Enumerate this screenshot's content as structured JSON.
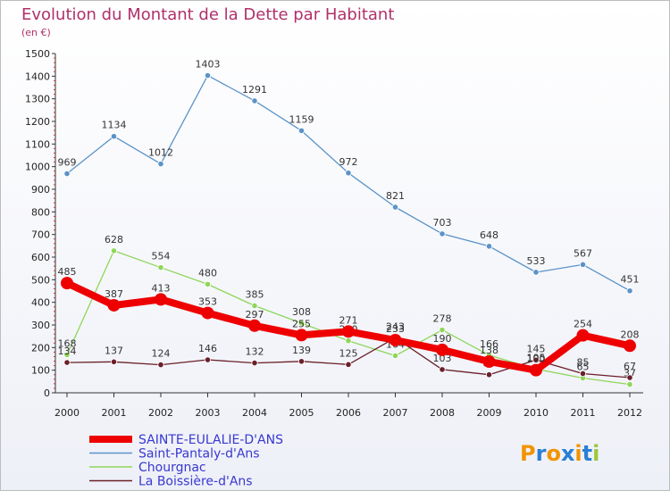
{
  "chart_data": {
    "type": "line",
    "title": "Evolution du Montant de la Dette par Habitant",
    "subtitle": "(en €)",
    "x": [
      "2000",
      "2001",
      "2002",
      "2003",
      "2004",
      "2005",
      "2006",
      "2007",
      "2008",
      "2009",
      "2010",
      "2011",
      "2012"
    ],
    "yticks": [
      "0",
      "100",
      "200",
      "300",
      "400",
      "500",
      "600",
      "700",
      "800",
      "900",
      "1000",
      "1100",
      "1200",
      "1300",
      "1400",
      "1500"
    ],
    "ylim": [
      0,
      1500
    ],
    "grid": false,
    "legend_position": "bottom-left",
    "series": [
      {
        "name": "Saint-Pantaly-d'Ans",
        "color": "#5b93c8",
        "values": [
          969,
          1134,
          1012,
          1403,
          1291,
          1159,
          972,
          821,
          703,
          648,
          533,
          567,
          451
        ],
        "labels": [
          "969",
          "1134",
          "1012",
          "1403",
          "1291",
          "1159",
          "972",
          "821",
          "703",
          "648",
          "533",
          "567",
          "451"
        ]
      },
      {
        "name": "Chourgnac",
        "color": "#8fd65a",
        "values": [
          168,
          628,
          554,
          480,
          385,
          308,
          230,
          164,
          278,
          166,
          105,
          65,
          37
        ],
        "labels": [
          "168",
          "628",
          "554",
          "480",
          "385",
          "308",
          "230",
          "164",
          "278",
          "166",
          "105",
          "65",
          "37"
        ]
      },
      {
        "name": "La Boissière-d'Ans",
        "color": "#6b1f2a",
        "values": [
          134,
          137,
          124,
          146,
          132,
          139,
          125,
          243,
          103,
          80,
          145,
          85,
          67
        ],
        "labels": [
          "134",
          "137",
          "124",
          "146",
          "132",
          "139",
          "125",
          "243",
          "103",
          "80",
          "145",
          "85",
          "67"
        ]
      },
      {
        "name": "SAINTE-EULALIE-D'ANS",
        "color": "#ee0000",
        "values": [
          485,
          387,
          413,
          353,
          297,
          255,
          271,
          233,
          190,
          138,
          100,
          254,
          208
        ],
        "labels": [
          "485",
          "387",
          "413",
          "353",
          "297",
          "255",
          "271",
          "233",
          "190",
          "138",
          "100",
          "254",
          "208"
        ]
      }
    ]
  },
  "legend": [
    {
      "label": "SAINTE-EULALIE-D'ANS",
      "color": "#ee0000"
    },
    {
      "label": "Saint-Pantaly-d'Ans",
      "color": "#5b93c8"
    },
    {
      "label": "Chourgnac",
      "color": "#8fd65a"
    },
    {
      "label": "La Boissière-d'Ans",
      "color": "#6b1f2a"
    }
  ],
  "logo": {
    "text": "Proxiti",
    "colors": [
      "#f29400",
      "#2a7fd4",
      "#f29400",
      "#2a7fd4",
      "#f29400",
      "#2a7fd4",
      "#9ac83c"
    ]
  }
}
